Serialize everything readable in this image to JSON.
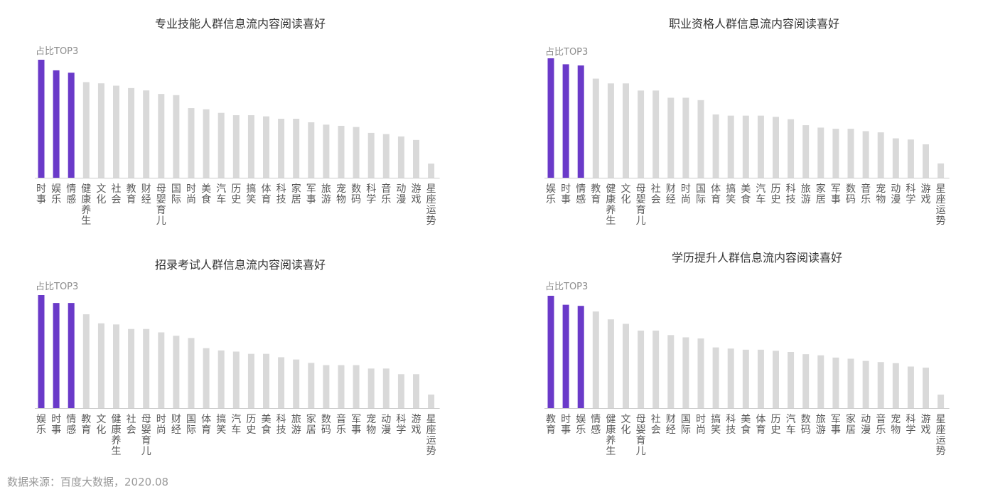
{
  "source": "数据来源：百度大数据，2020.08",
  "colors": {
    "highlight": "#6a3ac9",
    "normal": "#d9d9d9",
    "axis": "#cccccc",
    "title": "#333333",
    "subtitle": "#8c8c8c",
    "label": "#595959"
  },
  "chart_data": [
    {
      "type": "bar",
      "title": "专业技能人群信息流内容阅读喜好",
      "subtitle": "占比TOP3",
      "highlight_top": 3,
      "categories": [
        "时事",
        "娱乐",
        "情感",
        "健康养生",
        "文化",
        "社会",
        "教育",
        "财经",
        "母婴育儿",
        "国际",
        "时尚",
        "美食",
        "汽车",
        "历史",
        "搞笑",
        "体育",
        "科技",
        "家居",
        "军事",
        "旅游",
        "宠物",
        "数码",
        "科学",
        "音乐",
        "动漫",
        "游戏",
        "星座运势"
      ],
      "values": [
        100,
        91,
        89,
        81,
        80,
        78,
        76,
        74,
        71,
        70,
        59,
        58,
        55,
        53,
        53,
        52,
        50,
        50,
        47,
        45,
        44,
        43,
        38,
        37,
        35,
        32,
        12
      ]
    },
    {
      "type": "bar",
      "title": "职业资格人群信息流内容阅读喜好",
      "subtitle": "占比TOP3",
      "highlight_top": 3,
      "categories": [
        "娱乐",
        "时事",
        "情感",
        "教育",
        "健康养生",
        "文化",
        "母婴育儿",
        "社会",
        "财经",
        "时尚",
        "国际",
        "体育",
        "搞笑",
        "美食",
        "汽车",
        "历史",
        "科技",
        "旅游",
        "家居",
        "军事",
        "数码",
        "音乐",
        "宠物",
        "动漫",
        "科学",
        "游戏",
        "星座运势"
      ],
      "values": [
        100,
        95,
        94,
        83,
        79,
        79,
        73,
        73,
        67,
        67,
        65,
        53,
        52,
        52,
        52,
        51,
        49,
        44,
        42,
        41,
        41,
        39,
        38,
        33,
        32,
        28,
        12
      ]
    },
    {
      "type": "bar",
      "title": "招录考试人群信息流内容阅读喜好",
      "subtitle": "占比TOP3",
      "highlight_top": 3,
      "categories": [
        "娱乐",
        "时事",
        "情感",
        "教育",
        "文化",
        "健康养生",
        "社会",
        "母婴育儿",
        "时尚",
        "财经",
        "国际",
        "体育",
        "搞笑",
        "汽车",
        "历史",
        "美食",
        "科技",
        "旅游",
        "家居",
        "数码",
        "音乐",
        "军事",
        "宠物",
        "动漫",
        "科学",
        "游戏",
        "星座运势"
      ],
      "values": [
        100,
        93,
        93,
        83,
        75,
        74,
        70,
        70,
        67,
        64,
        62,
        53,
        51,
        50,
        48,
        48,
        45,
        43,
        40,
        38,
        38,
        38,
        35,
        35,
        30,
        30,
        12
      ]
    },
    {
      "type": "bar",
      "title": "学历提升人群信息流内容阅读喜好",
      "subtitle": "占比TOP3",
      "highlight_top": 3,
      "categories": [
        "教育",
        "时事",
        "娱乐",
        "情感",
        "健康养生",
        "文化",
        "母婴育儿",
        "社会",
        "财经",
        "国际",
        "时尚",
        "搞笑",
        "科技",
        "美食",
        "体育",
        "历史",
        "汽车",
        "数码",
        "旅游",
        "军事",
        "家居",
        "动漫",
        "音乐",
        "宠物",
        "科学",
        "游戏",
        "星座运势"
      ],
      "values": [
        100,
        92,
        91,
        86,
        79,
        75,
        69,
        69,
        65,
        63,
        62,
        54,
        53,
        52,
        52,
        51,
        50,
        48,
        47,
        45,
        44,
        42,
        41,
        40,
        37,
        36,
        12
      ]
    }
  ]
}
